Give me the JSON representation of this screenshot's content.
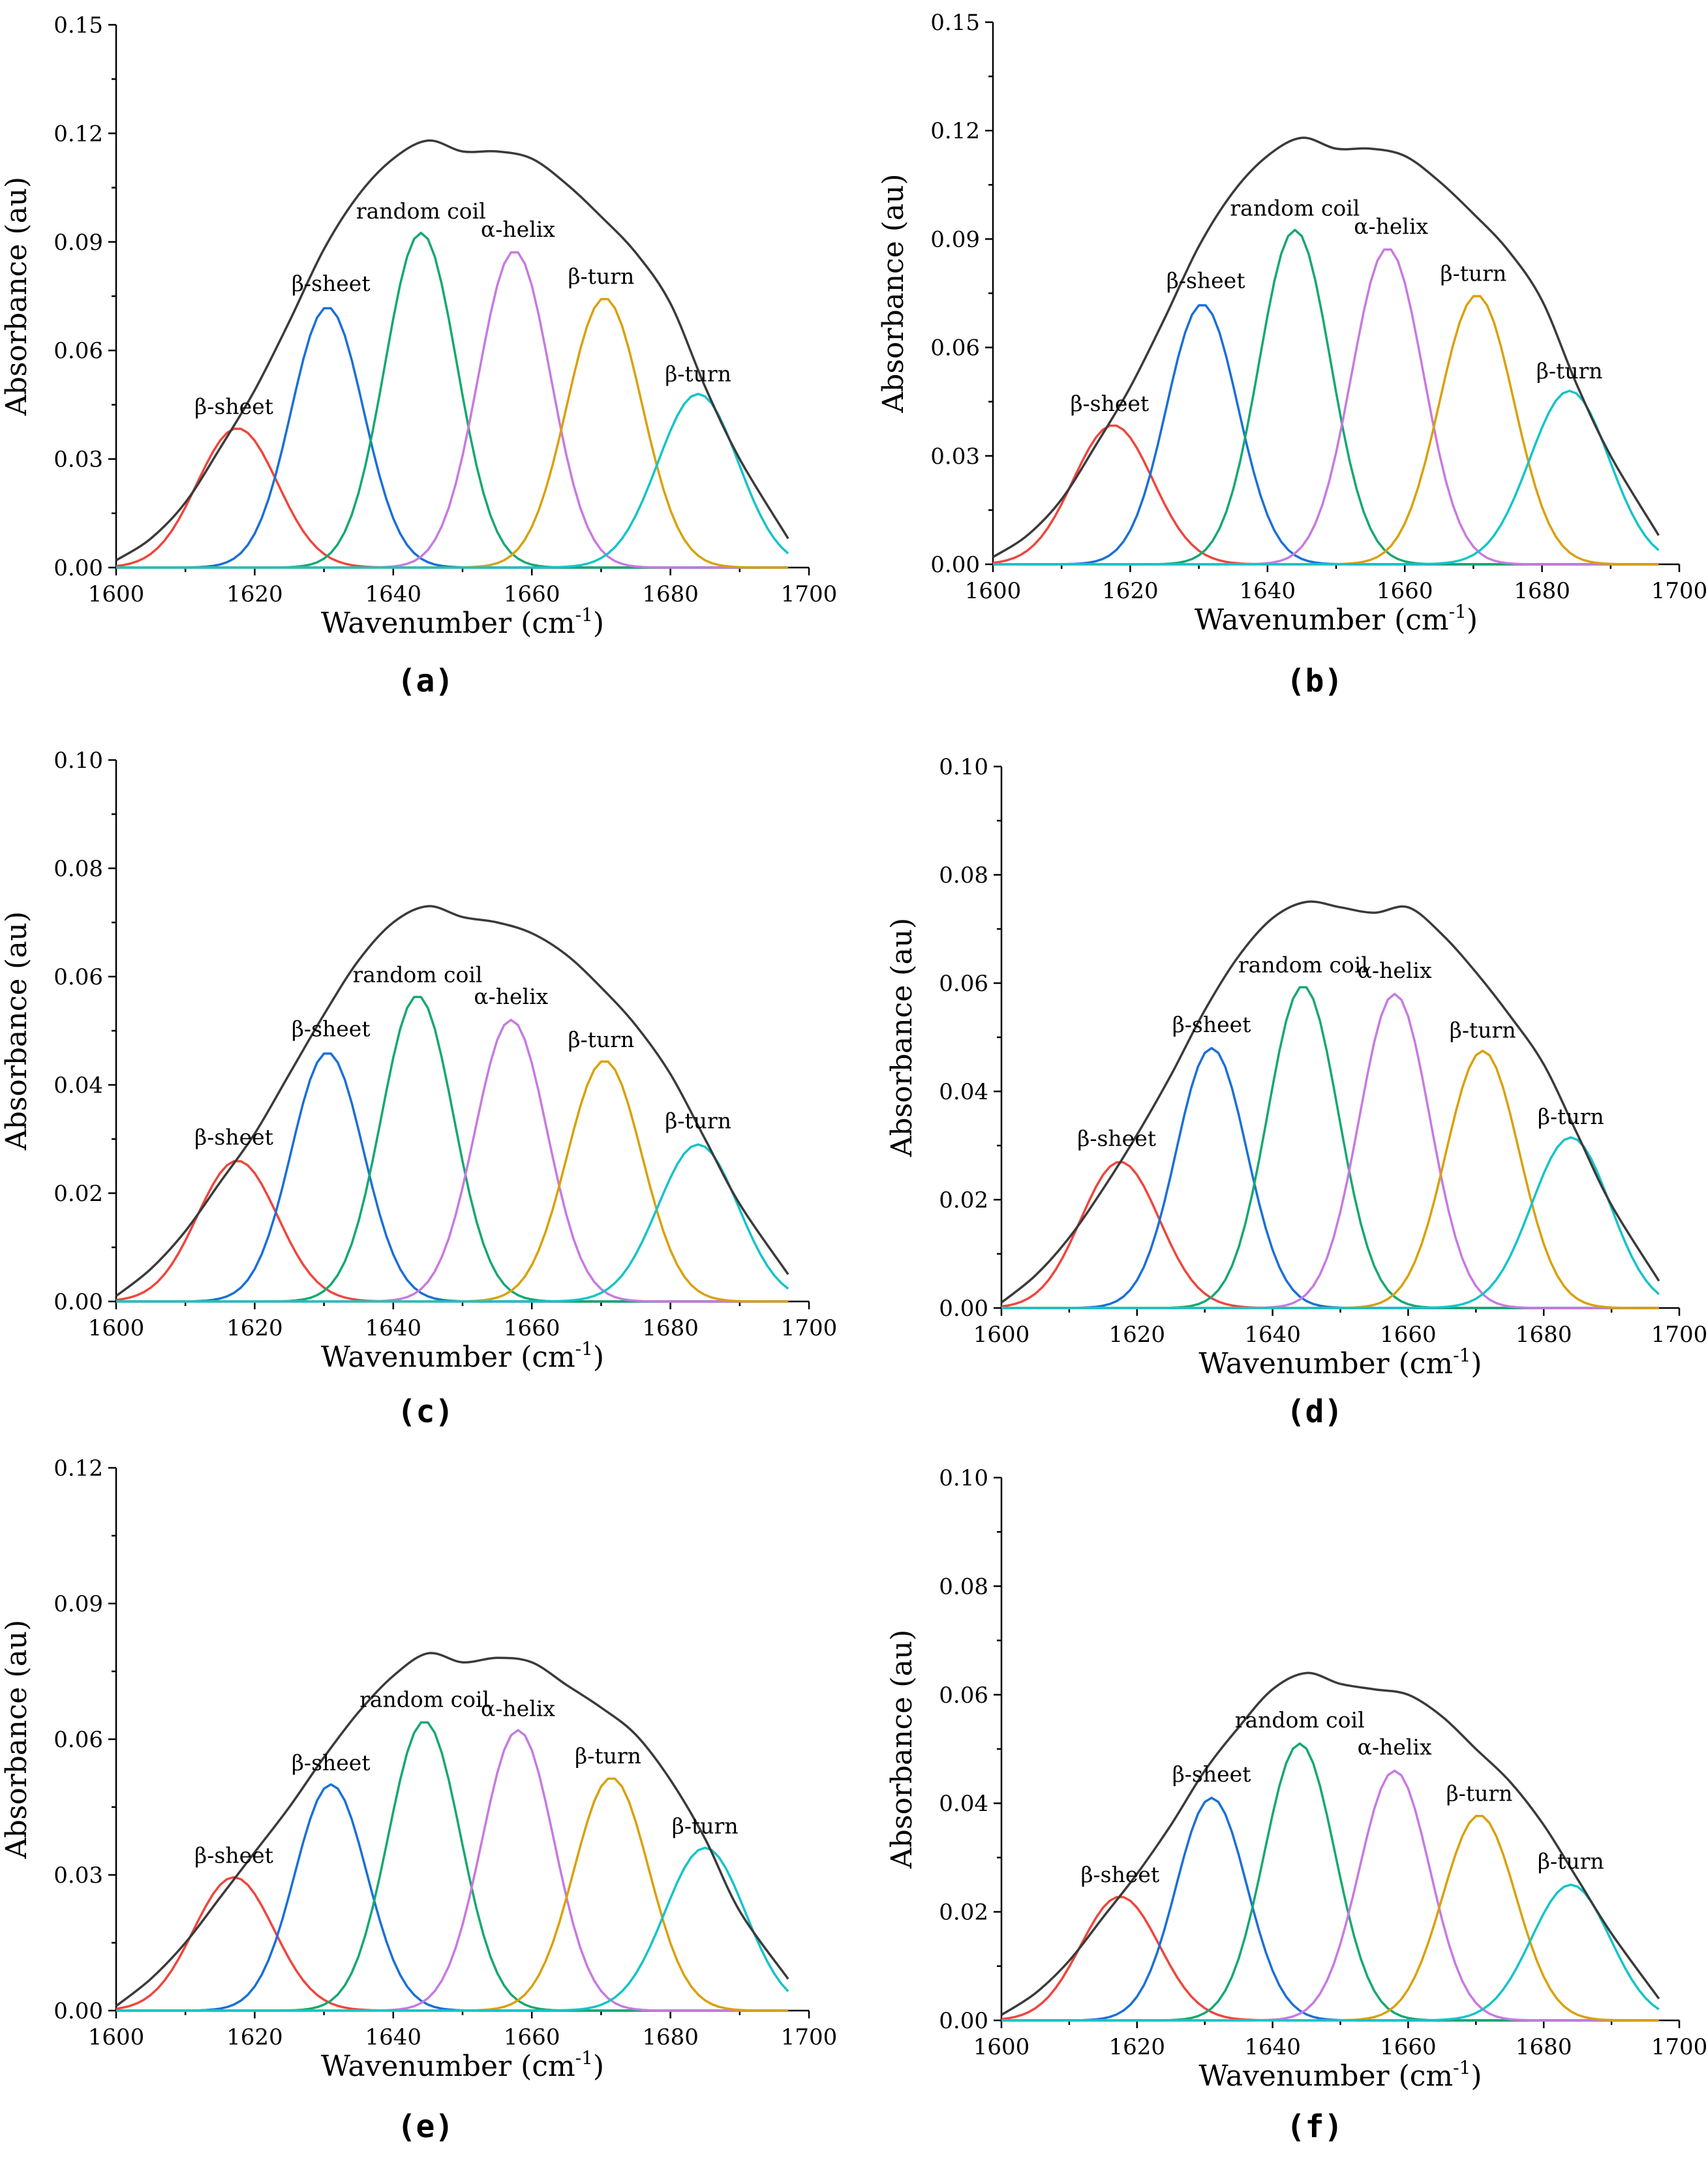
{
  "colors": {
    "envelope": "#3a3a3a",
    "beta_sheet_1": "#f0453d",
    "beta_sheet_2": "#1a6fd8",
    "random_coil": "#15a870",
    "alpha_helix": "#c77ae0",
    "beta_turn_1": "#d9a10a",
    "beta_turn_2": "#14c4c8"
  },
  "chart_data": [
    {
      "panel": "(a)",
      "type": "line",
      "xlabel": "Wavenumber (cm",
      "xlabel_sup": "-1",
      "xlabel_end": ")",
      "ylabel": "Absorbance (au)",
      "xlim": [
        1600,
        1700
      ],
      "ylim": [
        0,
        0.15
      ],
      "xticks": [
        "1600",
        "1620",
        "1640",
        "1660",
        "1680",
        "1700"
      ],
      "yticks": [
        "0.00",
        "0.03",
        "0.06",
        "0.09",
        "0.12",
        "0.15"
      ],
      "series": [
        {
          "name": "β-sheet",
          "key": "beta_sheet_1",
          "center": 1617.5,
          "height": 0.0385,
          "sigma": 5.8
        },
        {
          "name": "β-sheet",
          "key": "beta_sheet_2",
          "center": 1630.5,
          "height": 0.072,
          "sigma": 5.2
        },
        {
          "name": "random coil",
          "key": "random_coil",
          "center": 1644,
          "height": 0.0925,
          "sigma": 5.2
        },
        {
          "name": "α-helix",
          "key": "alpha_helix",
          "center": 1657.5,
          "height": 0.0875,
          "sigma": 5.2
        },
        {
          "name": "β-turn",
          "key": "beta_turn_1",
          "center": 1670.5,
          "height": 0.0745,
          "sigma": 5.4
        },
        {
          "name": "β-turn",
          "key": "beta_turn_2",
          "center": 1684,
          "height": 0.048,
          "sigma": 5.8
        }
      ],
      "envelope": {
        "x": [
          1600,
          1605,
          1610,
          1615,
          1620,
          1625,
          1630,
          1635,
          1640,
          1645,
          1650,
          1655,
          1660,
          1665,
          1670,
          1675,
          1680,
          1685,
          1690,
          1697
        ],
        "y": [
          0.002,
          0.008,
          0.018,
          0.033,
          0.049,
          0.068,
          0.088,
          0.103,
          0.113,
          0.118,
          0.115,
          0.115,
          0.113,
          0.106,
          0.097,
          0.087,
          0.073,
          0.05,
          0.03,
          0.008
        ]
      },
      "annotations": [
        {
          "text": "β-sheet",
          "x": 1617,
          "y": 0.041
        },
        {
          "text": "β-sheet",
          "x": 1631,
          "y": 0.075
        },
        {
          "text": "random coil",
          "x": 1644,
          "y": 0.095
        },
        {
          "text": "α-helix",
          "x": 1658,
          "y": 0.09
        },
        {
          "text": "β-turn",
          "x": 1670,
          "y": 0.077
        },
        {
          "text": "β-turn",
          "x": 1684,
          "y": 0.05
        }
      ]
    },
    {
      "panel": "(b)",
      "type": "line",
      "xlabel": "Wavenumber (cm",
      "xlabel_sup": "-1",
      "xlabel_end": ")",
      "ylabel": "Absorbance (au)",
      "xlim": [
        1600,
        1700
      ],
      "ylim": [
        0,
        0.15
      ],
      "xticks": [
        "1600",
        "1620",
        "1640",
        "1660",
        "1680",
        "1700"
      ],
      "yticks": [
        "0.00",
        "0.03",
        "0.06",
        "0.09",
        "0.12",
        "0.15"
      ],
      "series": [
        {
          "name": "β-sheet",
          "key": "beta_sheet_1",
          "center": 1617.5,
          "height": 0.0385,
          "sigma": 5.8
        },
        {
          "name": "β-sheet",
          "key": "beta_sheet_2",
          "center": 1630.5,
          "height": 0.072,
          "sigma": 5.2
        },
        {
          "name": "random coil",
          "key": "random_coil",
          "center": 1644,
          "height": 0.0925,
          "sigma": 5.2
        },
        {
          "name": "α-helix",
          "key": "alpha_helix",
          "center": 1657.5,
          "height": 0.0875,
          "sigma": 5.2
        },
        {
          "name": "β-turn",
          "key": "beta_turn_1",
          "center": 1670.5,
          "height": 0.0745,
          "sigma": 5.4
        },
        {
          "name": "β-turn",
          "key": "beta_turn_2",
          "center": 1684,
          "height": 0.048,
          "sigma": 5.8
        }
      ],
      "envelope": {
        "x": [
          1600,
          1605,
          1610,
          1615,
          1620,
          1625,
          1630,
          1635,
          1640,
          1645,
          1650,
          1655,
          1660,
          1665,
          1670,
          1675,
          1680,
          1685,
          1690,
          1697
        ],
        "y": [
          0.002,
          0.008,
          0.018,
          0.033,
          0.049,
          0.068,
          0.088,
          0.103,
          0.113,
          0.118,
          0.115,
          0.115,
          0.113,
          0.106,
          0.097,
          0.087,
          0.073,
          0.05,
          0.03,
          0.008
        ]
      },
      "annotations": [
        {
          "text": "β-sheet",
          "x": 1617,
          "y": 0.041
        },
        {
          "text": "β-sheet",
          "x": 1631,
          "y": 0.075
        },
        {
          "text": "random coil",
          "x": 1644,
          "y": 0.095
        },
        {
          "text": "α-helix",
          "x": 1658,
          "y": 0.09
        },
        {
          "text": "β-turn",
          "x": 1670,
          "y": 0.077
        },
        {
          "text": "β-turn",
          "x": 1684,
          "y": 0.05
        }
      ]
    },
    {
      "panel": "(c)",
      "type": "line",
      "xlabel": "Wavenumber (cm",
      "xlabel_sup": "-1",
      "xlabel_end": ")",
      "ylabel": "Absorbance (au)",
      "xlim": [
        1600,
        1700
      ],
      "ylim": [
        0,
        0.1
      ],
      "xticks": [
        "1600",
        "1620",
        "1640",
        "1660",
        "1680",
        "1700"
      ],
      "yticks": [
        "0.00",
        "0.02",
        "0.04",
        "0.06",
        "0.08",
        "0.10"
      ],
      "series": [
        {
          "name": "β-sheet",
          "key": "beta_sheet_1",
          "center": 1617.5,
          "height": 0.026,
          "sigma": 5.8
        },
        {
          "name": "β-sheet",
          "key": "beta_sheet_2",
          "center": 1630.5,
          "height": 0.046,
          "sigma": 5.2
        },
        {
          "name": "random coil",
          "key": "random_coil",
          "center": 1643.5,
          "height": 0.0565,
          "sigma": 5.2
        },
        {
          "name": "α-helix",
          "key": "alpha_helix",
          "center": 1657,
          "height": 0.052,
          "sigma": 5.2
        },
        {
          "name": "β-turn",
          "key": "beta_turn_1",
          "center": 1670.5,
          "height": 0.0445,
          "sigma": 5.4
        },
        {
          "name": "β-turn",
          "key": "beta_turn_2",
          "center": 1684,
          "height": 0.029,
          "sigma": 5.8
        }
      ],
      "envelope": {
        "x": [
          1600,
          1605,
          1610,
          1615,
          1620,
          1625,
          1630,
          1635,
          1640,
          1645,
          1650,
          1655,
          1660,
          1665,
          1670,
          1675,
          1680,
          1685,
          1690,
          1697
        ],
        "y": [
          0.001,
          0.006,
          0.013,
          0.022,
          0.031,
          0.042,
          0.053,
          0.063,
          0.07,
          0.073,
          0.071,
          0.07,
          0.068,
          0.064,
          0.058,
          0.051,
          0.042,
          0.03,
          0.018,
          0.005
        ]
      },
      "annotations": [
        {
          "text": "β-sheet",
          "x": 1617,
          "y": 0.028
        },
        {
          "text": "β-sheet",
          "x": 1631,
          "y": 0.048
        },
        {
          "text": "random coil",
          "x": 1643.5,
          "y": 0.058
        },
        {
          "text": "α-helix",
          "x": 1657,
          "y": 0.054
        },
        {
          "text": "β-turn",
          "x": 1670,
          "y": 0.046
        },
        {
          "text": "β-turn",
          "x": 1684,
          "y": 0.031
        }
      ]
    },
    {
      "panel": "(d)",
      "type": "line",
      "xlabel": "Wavenumber (cm",
      "xlabel_sup": "-1",
      "xlabel_end": ")",
      "ylabel": "Absorbance (au)",
      "xlim": [
        1600,
        1700
      ],
      "ylim": [
        0,
        0.1
      ],
      "xticks": [
        "1600",
        "1620",
        "1640",
        "1660",
        "1680",
        "1700"
      ],
      "yticks": [
        "0.00",
        "0.02",
        "0.04",
        "0.06",
        "0.08",
        "0.10"
      ],
      "series": [
        {
          "name": "β-sheet",
          "key": "beta_sheet_1",
          "center": 1617.5,
          "height": 0.027,
          "sigma": 5.8
        },
        {
          "name": "β-sheet",
          "key": "beta_sheet_2",
          "center": 1631,
          "height": 0.048,
          "sigma": 5.2
        },
        {
          "name": "random coil",
          "key": "random_coil",
          "center": 1644.5,
          "height": 0.0595,
          "sigma": 5.2
        },
        {
          "name": "α-helix",
          "key": "alpha_helix",
          "center": 1658,
          "height": 0.058,
          "sigma": 5.2
        },
        {
          "name": "β-turn",
          "key": "beta_turn_1",
          "center": 1671,
          "height": 0.0475,
          "sigma": 5.4
        },
        {
          "name": "β-turn",
          "key": "beta_turn_2",
          "center": 1684,
          "height": 0.0315,
          "sigma": 5.8
        }
      ],
      "envelope": {
        "x": [
          1600,
          1605,
          1610,
          1615,
          1620,
          1625,
          1630,
          1635,
          1640,
          1645,
          1650,
          1655,
          1660,
          1665,
          1670,
          1675,
          1680,
          1685,
          1690,
          1697
        ],
        "y": [
          0.001,
          0.006,
          0.013,
          0.022,
          0.032,
          0.043,
          0.055,
          0.065,
          0.072,
          0.075,
          0.074,
          0.073,
          0.074,
          0.069,
          0.062,
          0.054,
          0.045,
          0.032,
          0.019,
          0.005
        ]
      },
      "annotations": [
        {
          "text": "β-sheet",
          "x": 1617,
          "y": 0.029
        },
        {
          "text": "β-sheet",
          "x": 1631,
          "y": 0.05
        },
        {
          "text": "random coil",
          "x": 1644.5,
          "y": 0.061
        },
        {
          "text": "α-helix",
          "x": 1658,
          "y": 0.06
        },
        {
          "text": "β-turn",
          "x": 1671,
          "y": 0.049
        },
        {
          "text": "β-turn",
          "x": 1684,
          "y": 0.033
        }
      ]
    },
    {
      "panel": "(e)",
      "type": "line",
      "xlabel": "Wavenumber (cm",
      "xlabel_sup": "-1",
      "xlabel_end": ")",
      "ylabel": "Absorbance (au)",
      "xlim": [
        1600,
        1700
      ],
      "ylim": [
        0,
        0.12
      ],
      "xticks": [
        "1600",
        "1620",
        "1640",
        "1660",
        "1680",
        "1700"
      ],
      "yticks": [
        "0.00",
        "0.03",
        "0.06",
        "0.09",
        "0.12"
      ],
      "series": [
        {
          "name": "β-sheet",
          "key": "beta_sheet_1",
          "center": 1617,
          "height": 0.0295,
          "sigma": 5.8
        },
        {
          "name": "β-sheet",
          "key": "beta_sheet_2",
          "center": 1631,
          "height": 0.05,
          "sigma": 5.2
        },
        {
          "name": "random coil",
          "key": "random_coil",
          "center": 1644.5,
          "height": 0.064,
          "sigma": 5.2
        },
        {
          "name": "α-helix",
          "key": "alpha_helix",
          "center": 1658,
          "height": 0.062,
          "sigma": 5.2
        },
        {
          "name": "β-turn",
          "key": "beta_turn_1",
          "center": 1671.5,
          "height": 0.0515,
          "sigma": 5.4
        },
        {
          "name": "β-turn",
          "key": "beta_turn_2",
          "center": 1685,
          "height": 0.036,
          "sigma": 5.8
        }
      ],
      "envelope": {
        "x": [
          1600,
          1605,
          1610,
          1615,
          1620,
          1625,
          1630,
          1635,
          1640,
          1645,
          1650,
          1655,
          1660,
          1665,
          1670,
          1675,
          1680,
          1685,
          1690,
          1697
        ],
        "y": [
          0.001,
          0.007,
          0.015,
          0.025,
          0.035,
          0.045,
          0.056,
          0.066,
          0.074,
          0.079,
          0.077,
          0.078,
          0.077,
          0.072,
          0.067,
          0.061,
          0.051,
          0.038,
          0.022,
          0.007
        ]
      },
      "annotations": [
        {
          "text": "β-sheet",
          "x": 1617,
          "y": 0.0315
        },
        {
          "text": "β-sheet",
          "x": 1631,
          "y": 0.052
        },
        {
          "text": "random coil",
          "x": 1644.5,
          "y": 0.066
        },
        {
          "text": "α-helix",
          "x": 1658,
          "y": 0.064
        },
        {
          "text": "β-turn",
          "x": 1671,
          "y": 0.0535
        },
        {
          "text": "β-turn",
          "x": 1685,
          "y": 0.038
        }
      ]
    },
    {
      "panel": "(f)",
      "type": "line",
      "xlabel": "Wavenumber (cm",
      "xlabel_sup": "-1",
      "xlabel_end": ")",
      "ylabel": "Absorbance (au)",
      "xlim": [
        1600,
        1700
      ],
      "ylim": [
        0,
        0.1
      ],
      "xticks": [
        "1600",
        "1620",
        "1640",
        "1660",
        "1680",
        "1700"
      ],
      "yticks": [
        "0.00",
        "0.02",
        "0.04",
        "0.06",
        "0.08",
        "0.10"
      ],
      "series": [
        {
          "name": "β-sheet",
          "key": "beta_sheet_1",
          "center": 1617.5,
          "height": 0.0228,
          "sigma": 5.8
        },
        {
          "name": "β-sheet",
          "key": "beta_sheet_2",
          "center": 1631,
          "height": 0.041,
          "sigma": 5.2
        },
        {
          "name": "random coil",
          "key": "random_coil",
          "center": 1644,
          "height": 0.051,
          "sigma": 5.2
        },
        {
          "name": "α-helix",
          "key": "alpha_helix",
          "center": 1658,
          "height": 0.046,
          "sigma": 5.2
        },
        {
          "name": "β-turn",
          "key": "beta_turn_1",
          "center": 1670.5,
          "height": 0.0378,
          "sigma": 5.4
        },
        {
          "name": "β-turn",
          "key": "beta_turn_2",
          "center": 1684,
          "height": 0.025,
          "sigma": 5.8
        }
      ],
      "envelope": {
        "x": [
          1600,
          1605,
          1610,
          1615,
          1620,
          1625,
          1630,
          1635,
          1640,
          1645,
          1650,
          1655,
          1660,
          1665,
          1670,
          1675,
          1680,
          1685,
          1690,
          1697
        ],
        "y": [
          0.001,
          0.005,
          0.011,
          0.019,
          0.027,
          0.036,
          0.046,
          0.054,
          0.061,
          0.064,
          0.062,
          0.061,
          0.06,
          0.056,
          0.05,
          0.044,
          0.036,
          0.026,
          0.016,
          0.004
        ]
      },
      "annotations": [
        {
          "text": "β-sheet",
          "x": 1617.5,
          "y": 0.0245
        },
        {
          "text": "β-sheet",
          "x": 1631,
          "y": 0.043
        },
        {
          "text": "random coil",
          "x": 1644,
          "y": 0.053
        },
        {
          "text": "α-helix",
          "x": 1658,
          "y": 0.048
        },
        {
          "text": "β-turn",
          "x": 1670.5,
          "y": 0.0395
        },
        {
          "text": "β-turn",
          "x": 1684,
          "y": 0.027
        }
      ]
    }
  ]
}
